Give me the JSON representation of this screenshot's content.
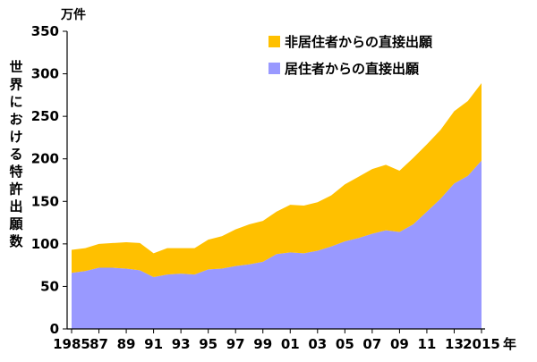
{
  "chart_data": {
    "type": "area",
    "stacked": true,
    "unit_label": "万件",
    "ylabel": "世界における特許出願数",
    "xlabel": "年",
    "ylim": [
      0,
      350
    ],
    "yticks": [
      0,
      50,
      100,
      150,
      200,
      250,
      300,
      350
    ],
    "x": [
      1985,
      1986,
      1987,
      1988,
      1989,
      1990,
      1991,
      1992,
      1993,
      1994,
      1995,
      1996,
      1997,
      1998,
      1999,
      2000,
      2001,
      2002,
      2003,
      2004,
      2005,
      2006,
      2007,
      2008,
      2009,
      2010,
      2011,
      2012,
      2013,
      2014,
      2015
    ],
    "xtick_labels": [
      {
        "year": 1985,
        "label": "1985"
      },
      {
        "year": 1987,
        "label": "87"
      },
      {
        "year": 1989,
        "label": "89"
      },
      {
        "year": 1991,
        "label": "91"
      },
      {
        "year": 1993,
        "label": "93"
      },
      {
        "year": 1995,
        "label": "95"
      },
      {
        "year": 1997,
        "label": "97"
      },
      {
        "year": 1999,
        "label": "99"
      },
      {
        "year": 2001,
        "label": "01"
      },
      {
        "year": 2003,
        "label": "03"
      },
      {
        "year": 2005,
        "label": "05"
      },
      {
        "year": 2007,
        "label": "07"
      },
      {
        "year": 2009,
        "label": "09"
      },
      {
        "year": 2011,
        "label": "11"
      },
      {
        "year": 2013,
        "label": "13"
      },
      {
        "year": 2015,
        "label": "2015"
      }
    ],
    "legend_position": "top-right",
    "series": [
      {
        "name": "居住者からの直接出願",
        "color": "#9999ff",
        "values": [
          66,
          68,
          72,
          72,
          71,
          69,
          61,
          64,
          65,
          64,
          70,
          71,
          74,
          76,
          79,
          88,
          90,
          89,
          92,
          97,
          103,
          107,
          112,
          116,
          114,
          123,
          138,
          153,
          171,
          180,
          198
        ]
      },
      {
        "name": "非居住者からの直接出願",
        "color": "#ffc000",
        "values": [
          27,
          27,
          28,
          29,
          31,
          32,
          28,
          31,
          30,
          31,
          35,
          38,
          43,
          47,
          48,
          50,
          56,
          56,
          57,
          60,
          67,
          72,
          76,
          77,
          72,
          78,
          79,
          81,
          85,
          88,
          91
        ]
      }
    ]
  }
}
